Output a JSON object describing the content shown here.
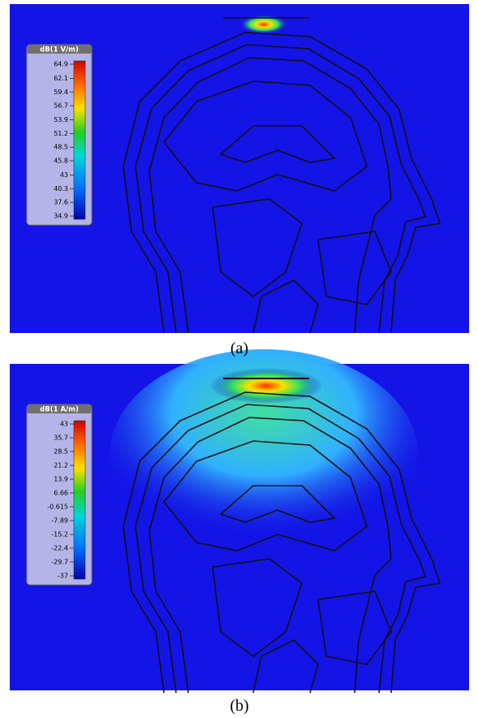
{
  "panels": [
    {
      "legend": {
        "title": "dB(1 V/m)",
        "ticks": [
          64.9,
          62.1,
          59.4,
          56.7,
          53.9,
          51.2,
          48.5,
          45.8,
          43,
          40.3,
          37.6,
          34.9
        ]
      },
      "caption": "(a)"
    },
    {
      "legend": {
        "title": "dB(1 A/m)",
        "ticks": [
          43,
          35.7,
          28.5,
          21.2,
          13.9,
          6.66,
          -0.615,
          -7.89,
          -15.2,
          -22.4,
          -29.7,
          -37
        ]
      },
      "caption": "(b)"
    }
  ]
}
